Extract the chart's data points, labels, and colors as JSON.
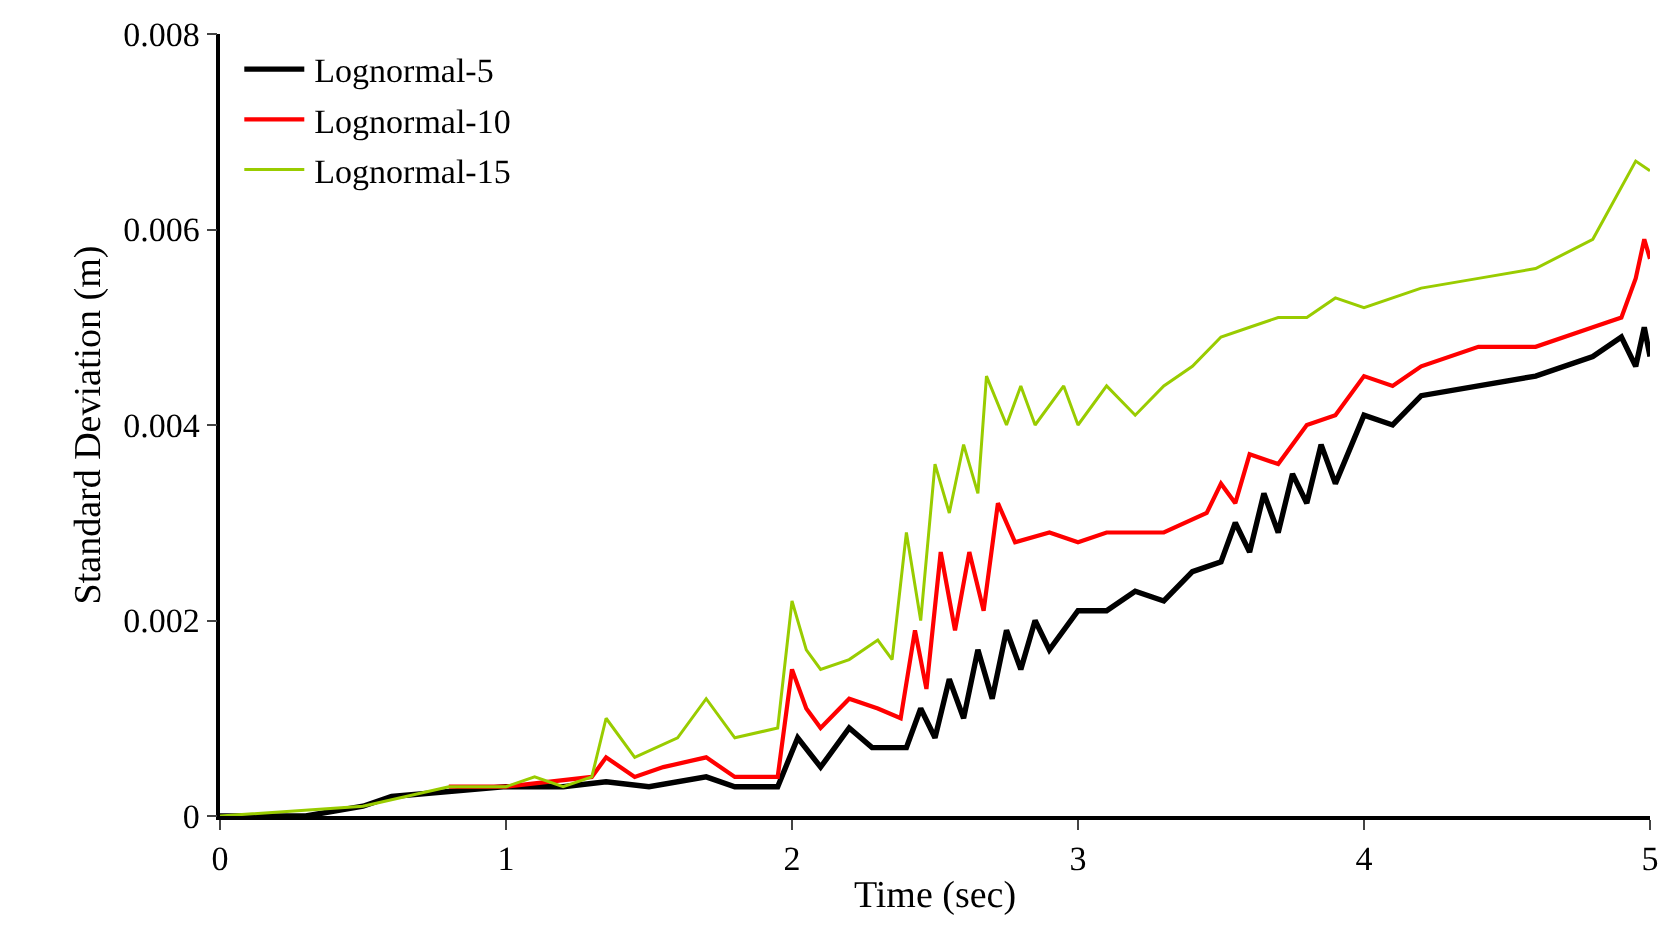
{
  "chart_data": {
    "type": "line",
    "xlabel": "Time (sec)",
    "ylabel": "Standard Deviation (m)",
    "xlim": [
      0,
      5
    ],
    "xticks": [
      0,
      1,
      2,
      3,
      4,
      5
    ],
    "ylim": [
      0,
      0.008
    ],
    "yticks": [
      {
        "value": 0,
        "label": "0"
      },
      0.002,
      0.004,
      0.006,
      0.008
    ],
    "legend": "top left",
    "marker": "none",
    "line_style": "solid",
    "series": [
      {
        "name": "Lognormal-5",
        "color": "#000000",
        "x": [
          0,
          0.3,
          0.5,
          0.6,
          0.8,
          1.0,
          1.2,
          1.35,
          1.5,
          1.7,
          1.8,
          1.95,
          2.02,
          2.1,
          2.2,
          2.28,
          2.4,
          2.45,
          2.5,
          2.55,
          2.6,
          2.65,
          2.7,
          2.75,
          2.8,
          2.85,
          2.9,
          3.0,
          3.1,
          3.2,
          3.3,
          3.4,
          3.5,
          3.55,
          3.6,
          3.65,
          3.7,
          3.75,
          3.8,
          3.85,
          3.9,
          4.0,
          4.1,
          4.2,
          4.4,
          4.6,
          4.8,
          4.9,
          4.95,
          4.98,
          5.0
        ],
        "values": [
          0,
          0,
          0.0001,
          0.0002,
          0.00025,
          0.0003,
          0.0003,
          0.00035,
          0.0003,
          0.0004,
          0.0003,
          0.0003,
          0.0008,
          0.0005,
          0.0009,
          0.0007,
          0.0007,
          0.0011,
          0.0008,
          0.0014,
          0.001,
          0.0017,
          0.0012,
          0.0019,
          0.0015,
          0.002,
          0.0017,
          0.0021,
          0.0021,
          0.0023,
          0.0022,
          0.0025,
          0.0026,
          0.003,
          0.0027,
          0.0033,
          0.0029,
          0.0035,
          0.0032,
          0.0038,
          0.0034,
          0.0041,
          0.004,
          0.0043,
          0.0044,
          0.0045,
          0.0047,
          0.0049,
          0.0046,
          0.005,
          0.0047
        ]
      },
      {
        "name": "Lognormal-10",
        "color": "#ff0000",
        "x": [
          0.8,
          1.0,
          1.3,
          1.35,
          1.45,
          1.55,
          1.7,
          1.8,
          1.95,
          2.0,
          2.05,
          2.1,
          2.2,
          2.3,
          2.38,
          2.43,
          2.47,
          2.52,
          2.57,
          2.62,
          2.67,
          2.72,
          2.78,
          2.9,
          3.0,
          3.1,
          3.3,
          3.45,
          3.5,
          3.55,
          3.6,
          3.7,
          3.8,
          3.9,
          4.0,
          4.1,
          4.2,
          4.4,
          4.6,
          4.8,
          4.9,
          4.95,
          4.98,
          5.0
        ],
        "values": [
          0.0003,
          0.0003,
          0.0004,
          0.0006,
          0.0004,
          0.0005,
          0.0006,
          0.0004,
          0.0004,
          0.0015,
          0.0011,
          0.0009,
          0.0012,
          0.0011,
          0.001,
          0.0019,
          0.0013,
          0.0027,
          0.0019,
          0.0027,
          0.0021,
          0.0032,
          0.0028,
          0.0029,
          0.0028,
          0.0029,
          0.0029,
          0.0031,
          0.0034,
          0.0032,
          0.0037,
          0.0036,
          0.004,
          0.0041,
          0.0045,
          0.0044,
          0.0046,
          0.0048,
          0.0048,
          0.005,
          0.0051,
          0.0055,
          0.0059,
          0.0057
        ]
      },
      {
        "name": "Lognormal-15",
        "color": "#99cc00",
        "x": [
          0,
          0.5,
          0.8,
          1.0,
          1.1,
          1.2,
          1.3,
          1.35,
          1.45,
          1.6,
          1.7,
          1.8,
          1.95,
          2.0,
          2.05,
          2.1,
          2.2,
          2.3,
          2.35,
          2.4,
          2.45,
          2.5,
          2.55,
          2.6,
          2.65,
          2.68,
          2.75,
          2.8,
          2.85,
          2.95,
          3.0,
          3.1,
          3.2,
          3.3,
          3.4,
          3.5,
          3.6,
          3.7,
          3.8,
          3.9,
          4.0,
          4.2,
          4.4,
          4.6,
          4.8,
          4.95,
          5.0
        ],
        "values": [
          0,
          0.0001,
          0.0003,
          0.0003,
          0.0004,
          0.0003,
          0.0004,
          0.001,
          0.0006,
          0.0008,
          0.0012,
          0.0008,
          0.0009,
          0.0022,
          0.0017,
          0.0015,
          0.0016,
          0.0018,
          0.0016,
          0.0029,
          0.002,
          0.0036,
          0.0031,
          0.0038,
          0.0033,
          0.0045,
          0.004,
          0.0044,
          0.004,
          0.0044,
          0.004,
          0.0044,
          0.0041,
          0.0044,
          0.0046,
          0.0049,
          0.005,
          0.0051,
          0.0051,
          0.0053,
          0.0052,
          0.0054,
          0.0055,
          0.0056,
          0.0059,
          0.0067,
          0.0066
        ]
      }
    ]
  }
}
